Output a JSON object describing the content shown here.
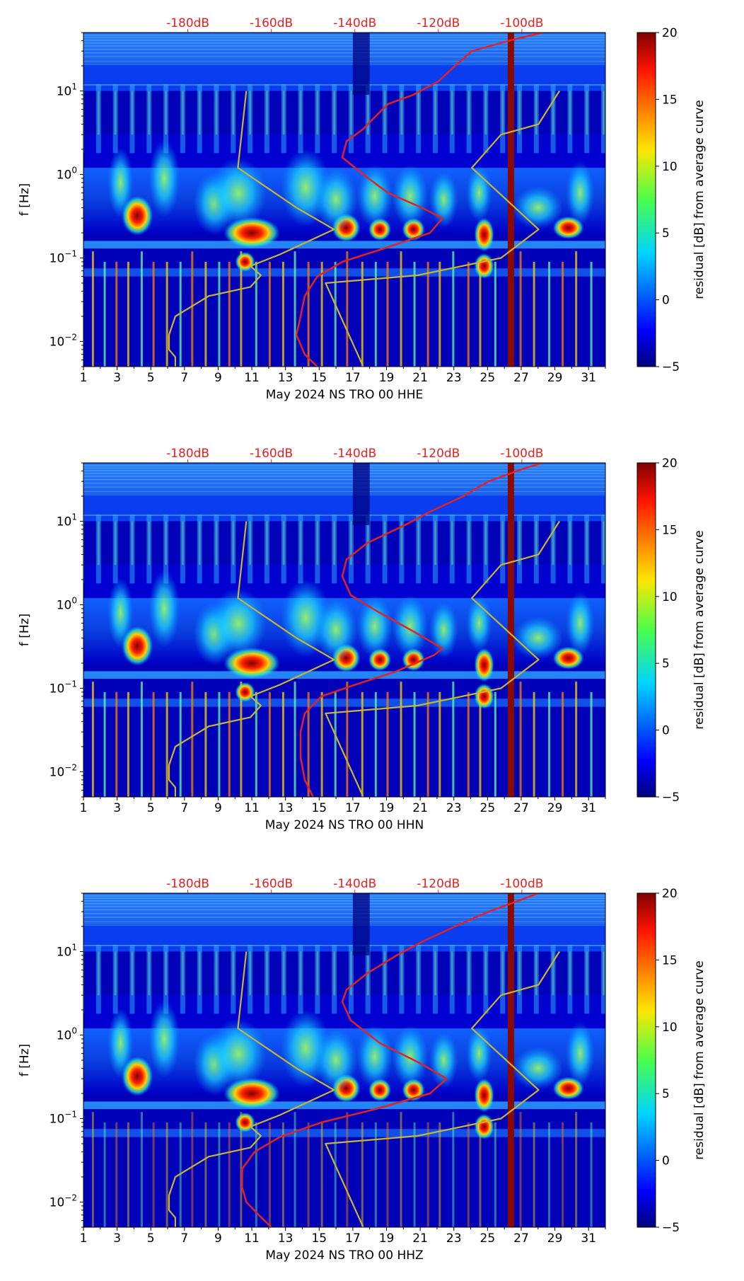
{
  "chart_data": [
    {
      "type": "heatmap",
      "title": "",
      "xlabel": "May 2024 NS TRO 00 HHE",
      "ylabel": "f [Hz]",
      "x_ticks": [
        "1",
        "3",
        "5",
        "7",
        "9",
        "11",
        "13",
        "15",
        "17",
        "19",
        "21",
        "23",
        "25",
        "27",
        "29",
        "31"
      ],
      "xlim": [
        1,
        32
      ],
      "y_ticks": [
        "10^-2",
        "10^-1",
        "10^0",
        "10^1"
      ],
      "ylim_hz": [
        0.005,
        50
      ],
      "y_scale": "log",
      "top_ticks": [
        "-180dB",
        "-160dB",
        "-140dB",
        "-120dB",
        "-100dB"
      ],
      "colorbar": {
        "label": "residual [dB] from average curve",
        "ticks": [
          "20",
          "15",
          "10",
          "5",
          "0",
          "−5"
        ],
        "range": [
          -5,
          20
        ]
      },
      "series": [
        {
          "name": "average PSD (top dB axis)",
          "color": "#e32222",
          "points": [
            [
              -149,
              0.005
            ],
            [
              -152,
              0.007
            ],
            [
              -154,
              0.012
            ],
            [
              -153,
              0.02
            ],
            [
              -152,
              0.035
            ],
            [
              -149,
              0.06
            ],
            [
              -143,
              0.09
            ],
            [
              -133,
              0.13
            ],
            [
              -122,
              0.2
            ],
            [
              -119,
              0.3
            ],
            [
              -124,
              0.4
            ],
            [
              -132,
              0.6
            ],
            [
              -138,
              1.0
            ],
            [
              -143,
              1.6
            ],
            [
              -142,
              2.5
            ],
            [
              -138,
              3.5
            ],
            [
              -135,
              5
            ],
            [
              -132,
              7
            ],
            [
              -126,
              9
            ],
            [
              -120,
              13
            ],
            [
              -116,
              20
            ],
            [
              -112,
              30
            ],
            [
              -103,
              40
            ],
            [
              -95,
              50
            ]
          ]
        },
        {
          "name": "low noise model",
          "color": "#c8b436",
          "points": [
            [
              -183,
              0.005
            ],
            [
              -183,
              0.0065
            ],
            [
              -184.5,
              0.008
            ],
            [
              -184.5,
              0.012
            ],
            [
              -183,
              0.02
            ],
            [
              -175,
              0.035
            ],
            [
              -165,
              0.045
            ],
            [
              -162.5,
              0.062
            ],
            [
              -165,
              0.08
            ],
            [
              -158,
              0.11
            ],
            [
              -145,
              0.22
            ],
            [
              -154,
              0.4
            ],
            [
              -168,
              1.2
            ],
            [
              -166,
              10
            ]
          ]
        },
        {
          "name": "high noise model",
          "color": "#c8b436",
          "points": [
            [
              -138,
              0.005
            ],
            [
              -147,
              0.05
            ],
            [
              -125,
              0.062
            ],
            [
              -105,
              0.1
            ],
            [
              -96,
              0.22
            ],
            [
              -112,
              1.2
            ],
            [
              -105,
              3
            ],
            [
              -96,
              4
            ],
            [
              -91,
              10
            ]
          ]
        }
      ]
    },
    {
      "type": "heatmap",
      "title": "",
      "xlabel": "May 2024 NS TRO 00 HHN",
      "ylabel": "f [Hz]",
      "x_ticks": [
        "1",
        "3",
        "5",
        "7",
        "9",
        "11",
        "13",
        "15",
        "17",
        "19",
        "21",
        "23",
        "25",
        "27",
        "29",
        "31"
      ],
      "xlim": [
        1,
        32
      ],
      "y_ticks": [
        "10^-2",
        "10^-1",
        "10^0",
        "10^1"
      ],
      "ylim_hz": [
        0.005,
        50
      ],
      "y_scale": "log",
      "top_ticks": [
        "-180dB",
        "-160dB",
        "-140dB",
        "-120dB",
        "-100dB"
      ],
      "colorbar": {
        "label": "residual [dB] from average curve",
        "ticks": [
          "20",
          "15",
          "10",
          "5",
          "0",
          "−5"
        ],
        "range": [
          -5,
          20
        ]
      },
      "series": [
        {
          "name": "average PSD (top dB axis)",
          "color": "#e32222",
          "points": [
            [
              -150,
              0.005
            ],
            [
              -152,
              0.008
            ],
            [
              -153,
              0.015
            ],
            [
              -153,
              0.03
            ],
            [
              -152,
              0.05
            ],
            [
              -148,
              0.08
            ],
            [
              -140,
              0.11
            ],
            [
              -130,
              0.16
            ],
            [
              -121,
              0.25
            ],
            [
              -119,
              0.3
            ],
            [
              -125,
              0.45
            ],
            [
              -134,
              0.8
            ],
            [
              -141,
              1.3
            ],
            [
              -143,
              2.2
            ],
            [
              -142,
              3.5
            ],
            [
              -137,
              5.5
            ],
            [
              -128,
              9
            ],
            [
              -122,
              13
            ],
            [
              -114,
              20
            ],
            [
              -108,
              30
            ],
            [
              -100,
              42
            ],
            [
              -95,
              50
            ]
          ]
        },
        {
          "name": "low noise model",
          "color": "#c8b436",
          "points": [
            [
              -183,
              0.005
            ],
            [
              -183,
              0.0065
            ],
            [
              -184.5,
              0.008
            ],
            [
              -184.5,
              0.012
            ],
            [
              -183,
              0.02
            ],
            [
              -175,
              0.035
            ],
            [
              -165,
              0.045
            ],
            [
              -162.5,
              0.062
            ],
            [
              -165,
              0.08
            ],
            [
              -158,
              0.11
            ],
            [
              -145,
              0.22
            ],
            [
              -154,
              0.4
            ],
            [
              -168,
              1.2
            ],
            [
              -166,
              10
            ]
          ]
        },
        {
          "name": "high noise model",
          "color": "#c8b436",
          "points": [
            [
              -138,
              0.005
            ],
            [
              -147,
              0.05
            ],
            [
              -125,
              0.062
            ],
            [
              -105,
              0.1
            ],
            [
              -96,
              0.22
            ],
            [
              -112,
              1.2
            ],
            [
              -105,
              3
            ],
            [
              -96,
              4
            ],
            [
              -91,
              10
            ]
          ]
        }
      ]
    },
    {
      "type": "heatmap",
      "title": "",
      "xlabel": "May 2024 NS TRO 00 HHZ",
      "ylabel": "f [Hz]",
      "x_ticks": [
        "1",
        "3",
        "5",
        "7",
        "9",
        "11",
        "13",
        "15",
        "17",
        "19",
        "21",
        "23",
        "25",
        "27",
        "29",
        "31"
      ],
      "xlim": [
        1,
        32
      ],
      "y_ticks": [
        "10^-2",
        "10^-1",
        "10^0",
        "10^1"
      ],
      "ylim_hz": [
        0.005,
        50
      ],
      "y_scale": "log",
      "top_ticks": [
        "-180dB",
        "-160dB",
        "-140dB",
        "-120dB",
        "-100dB"
      ],
      "colorbar": {
        "label": "residual [dB] from average curve",
        "ticks": [
          "20",
          "15",
          "10",
          "5",
          "0",
          "−5"
        ],
        "range": [
          -5,
          20
        ]
      },
      "series": [
        {
          "name": "average PSD (top dB axis)",
          "color": "#e32222",
          "points": [
            [
              -160,
              0.005
            ],
            [
              -163,
              0.007
            ],
            [
              -166,
              0.01
            ],
            [
              -167,
              0.015
            ],
            [
              -167,
              0.025
            ],
            [
              -164,
              0.04
            ],
            [
              -158,
              0.06
            ],
            [
              -148,
              0.09
            ],
            [
              -135,
              0.13
            ],
            [
              -122,
              0.2
            ],
            [
              -118,
              0.3
            ],
            [
              -124,
              0.45
            ],
            [
              -134,
              0.8
            ],
            [
              -141,
              1.5
            ],
            [
              -143,
              2.5
            ],
            [
              -142,
              3.5
            ],
            [
              -137,
              5.5
            ],
            [
              -130,
              9
            ],
            [
              -124,
              13
            ],
            [
              -116,
              20
            ],
            [
              -108,
              30
            ],
            [
              -100,
              42
            ],
            [
              -96,
              50
            ]
          ]
        },
        {
          "name": "low noise model",
          "color": "#c8b436",
          "points": [
            [
              -183,
              0.005
            ],
            [
              -183,
              0.0065
            ],
            [
              -184.5,
              0.008
            ],
            [
              -184.5,
              0.012
            ],
            [
              -183,
              0.02
            ],
            [
              -175,
              0.035
            ],
            [
              -165,
              0.045
            ],
            [
              -162.5,
              0.062
            ],
            [
              -165,
              0.08
            ],
            [
              -158,
              0.11
            ],
            [
              -145,
              0.22
            ],
            [
              -154,
              0.4
            ],
            [
              -168,
              1.2
            ],
            [
              -166,
              10
            ]
          ]
        },
        {
          "name": "high noise model",
          "color": "#c8b436",
          "points": [
            [
              -138,
              0.005
            ],
            [
              -147,
              0.05
            ],
            [
              -125,
              0.062
            ],
            [
              -105,
              0.1
            ],
            [
              -96,
              0.22
            ],
            [
              -112,
              1.2
            ],
            [
              -105,
              3
            ],
            [
              -96,
              4
            ],
            [
              -91,
              10
            ]
          ]
        }
      ]
    }
  ]
}
